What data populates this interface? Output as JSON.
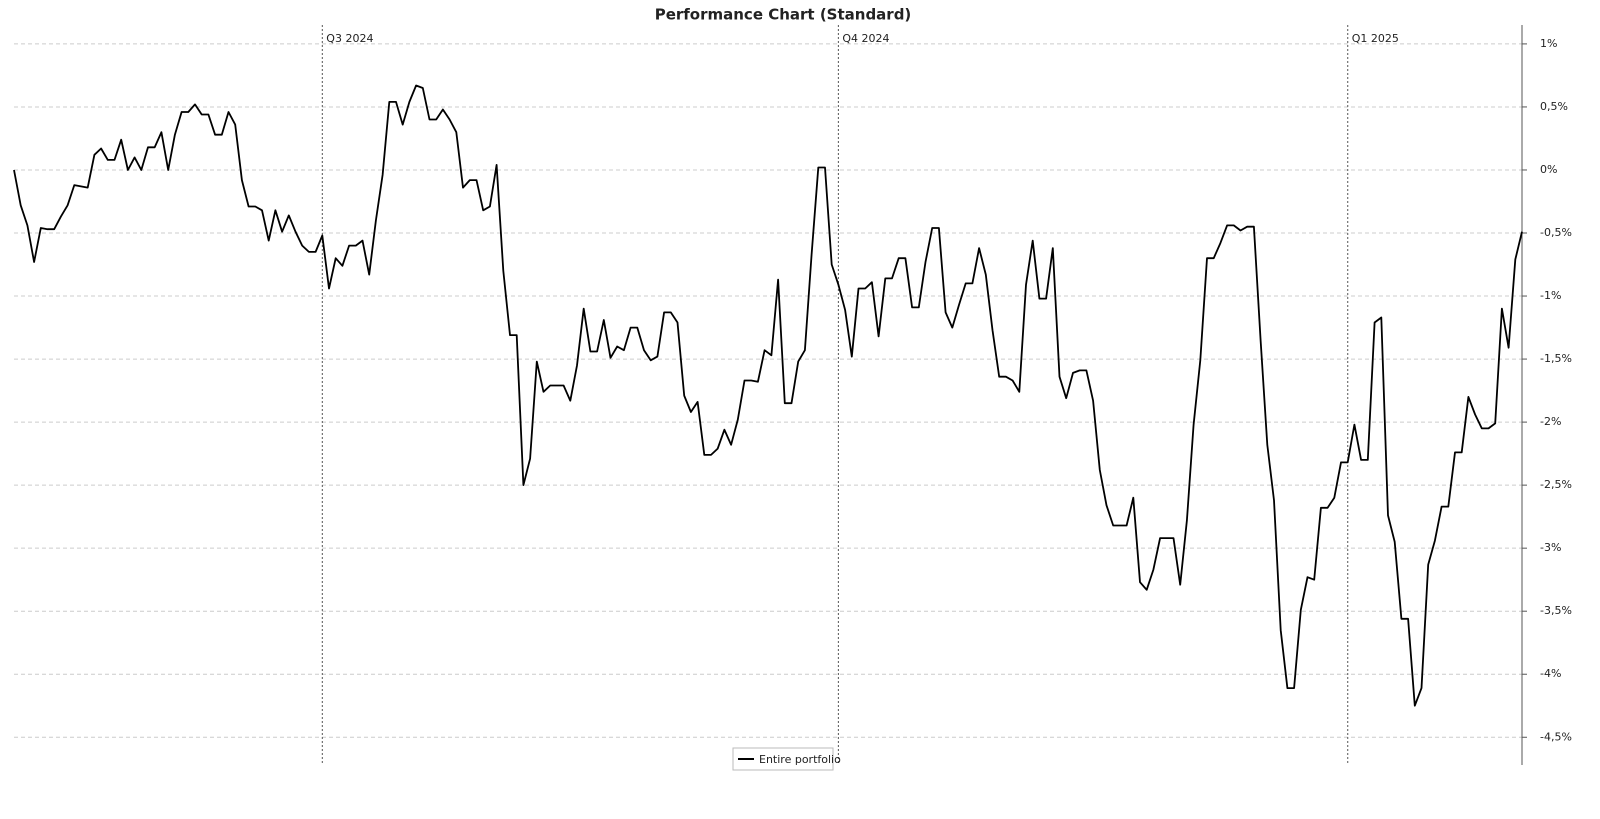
{
  "chart_data": {
    "type": "line",
    "title": "Performance Chart (Standard)",
    "xlim": [
      0,
      225
    ],
    "xticks": [
      {
        "value": 46,
        "label": "Q3 2024"
      },
      {
        "value": 123,
        "label": "Q4 2024"
      },
      {
        "value": 199,
        "label": "Q1 2025"
      }
    ],
    "ylim": [
      -4.72,
      1.15
    ],
    "yticks": [
      {
        "value": 1,
        "label": "1%"
      },
      {
        "value": 0.5,
        "label": "0,5%"
      },
      {
        "value": 0,
        "label": "0%"
      },
      {
        "value": -0.5,
        "label": "-0,5%"
      },
      {
        "value": -1,
        "label": "-1%"
      },
      {
        "value": -1.5,
        "label": "-1,5%"
      },
      {
        "value": -2,
        "label": "-2%"
      },
      {
        "value": -2.5,
        "label": "-2,5%"
      },
      {
        "value": -3,
        "label": "-3%"
      },
      {
        "value": -3.5,
        "label": "-3,5%"
      },
      {
        "value": -4,
        "label": "-4%"
      },
      {
        "value": -4.5,
        "label": "-4,5%"
      }
    ],
    "grid": true,
    "legend": "bottom",
    "series": [
      {
        "name": "Entire portfolio",
        "color": "#000000",
        "values": [
          0,
          -0.28,
          -0.44,
          -0.73,
          -0.46,
          -0.47,
          -0.47,
          -0.37,
          -0.28,
          -0.12,
          -0.13,
          -0.14,
          0.12,
          0.17,
          0.08,
          0.08,
          0.24,
          0,
          0.1,
          0,
          0.18,
          0.18,
          0.3,
          0,
          0.28,
          0.46,
          0.46,
          0.52,
          0.44,
          0.44,
          0.28,
          0.28,
          0.46,
          0.36,
          -0.08,
          -0.29,
          -0.29,
          -0.32,
          -0.56,
          -0.32,
          -0.49,
          -0.36,
          -0.49,
          -0.6,
          -0.65,
          -0.65,
          -0.52,
          -0.94,
          -0.7,
          -0.76,
          -0.6,
          -0.6,
          -0.56,
          -0.83,
          -0.4,
          -0.04,
          0.54,
          0.54,
          0.36,
          0.54,
          0.67,
          0.65,
          0.4,
          0.4,
          0.48,
          0.4,
          0.3,
          -0.14,
          -0.08,
          -0.08,
          -0.32,
          -0.29,
          0.04,
          -0.8,
          -1.31,
          -1.31,
          -2.5,
          -2.29,
          -1.52,
          -1.76,
          -1.71,
          -1.71,
          -1.71,
          -1.83,
          -1.55,
          -1.1,
          -1.44,
          -1.44,
          -1.19,
          -1.49,
          -1.4,
          -1.43,
          -1.25,
          -1.25,
          -1.43,
          -1.51,
          -1.48,
          -1.13,
          -1.13,
          -1.21,
          -1.79,
          -1.92,
          -1.84,
          -2.26,
          -2.26,
          -2.21,
          -2.06,
          -2.18,
          -1.98,
          -1.67,
          -1.67,
          -1.68,
          -1.43,
          -1.47,
          -0.87,
          -1.85,
          -1.85,
          -1.52,
          -1.43,
          -0.67,
          0.02,
          0.02,
          -0.75,
          -0.91,
          -1.11,
          -1.48,
          -0.94,
          -0.94,
          -0.89,
          -1.32,
          -0.86,
          -0.86,
          -0.7,
          -0.7,
          -1.09,
          -1.09,
          -0.73,
          -0.46,
          -0.46,
          -1.13,
          -1.25,
          -1.07,
          -0.9,
          -0.9,
          -0.62,
          -0.83,
          -1.27,
          -1.64,
          -1.64,
          -1.67,
          -1.76,
          -0.91,
          -0.56,
          -1.02,
          -1.02,
          -0.62,
          -1.64,
          -1.81,
          -1.61,
          -1.59,
          -1.59,
          -1.83,
          -2.38,
          -2.66,
          -2.82,
          -2.82,
          -2.82,
          -2.6,
          -3.27,
          -3.33,
          -3.17,
          -2.92,
          -2.92,
          -2.92,
          -3.29,
          -2.78,
          -2.02,
          -1.51,
          -0.7,
          -0.7,
          -0.58,
          -0.44,
          -0.44,
          -0.48,
          -0.45,
          -0.45,
          -1.35,
          -2.18,
          -2.62,
          -3.65,
          -4.11,
          -4.11,
          -3.49,
          -3.23,
          -3.25,
          -2.68,
          -2.68,
          -2.6,
          -2.32,
          -2.32,
          -2.02,
          -2.3,
          -2.3,
          -1.21,
          -1.17,
          -2.74,
          -2.95,
          -3.56,
          -3.56,
          -4.25,
          -4.11,
          -3.13,
          -2.94,
          -2.67,
          -2.67,
          -2.24,
          -2.24,
          -1.8,
          -1.94,
          -2.05,
          -2.05,
          -2.01,
          -1.1,
          -1.41,
          -0.71,
          -0.49
        ]
      }
    ]
  }
}
